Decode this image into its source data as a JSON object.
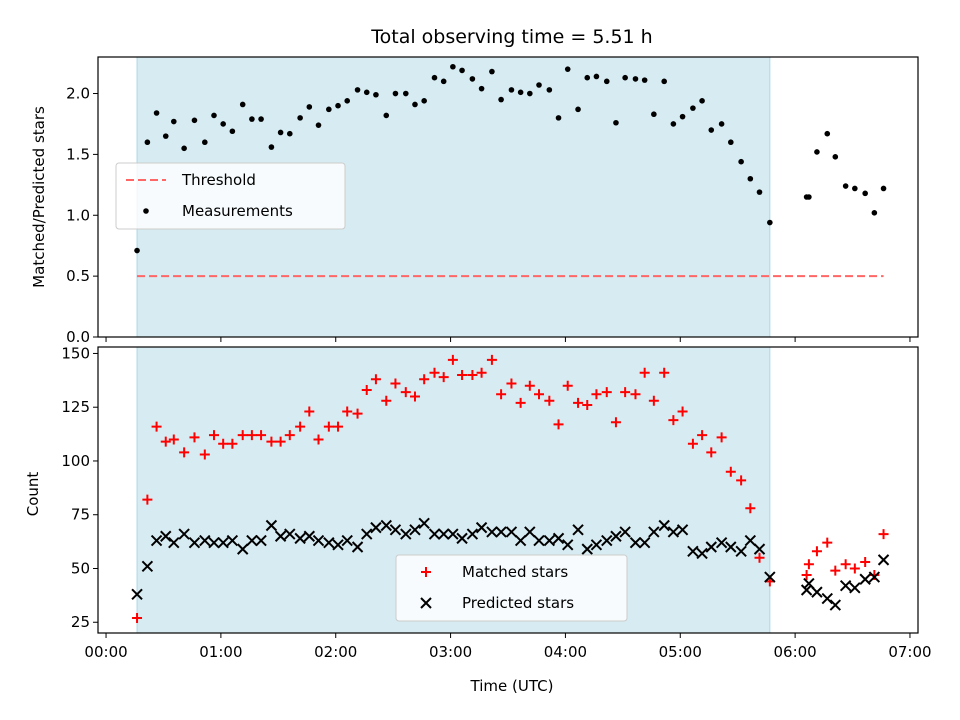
{
  "figure": {
    "title": "Total observing time = 5.51 h",
    "xlabel": "Time (UTC)"
  },
  "colors": {
    "shade": "#add8e6",
    "threshold": "#ff6666",
    "measurements": "#000000",
    "matched": "#ff0000",
    "predicted": "#000000"
  },
  "chart_data": [
    {
      "type": "scatter",
      "panel": "top",
      "ylabel": "Matched/Predicted stars",
      "xlim": [
        -0.07,
        7.07
      ],
      "ylim": [
        0,
        2.3
      ],
      "xticks": [
        0,
        1,
        2,
        3,
        4,
        5,
        6,
        7
      ],
      "xtick_labels": [],
      "yticks": [
        0.0,
        0.5,
        1.0,
        1.5,
        2.0
      ],
      "ytick_labels": [
        "0.0",
        "0.5",
        "1.0",
        "1.5",
        "2.0"
      ],
      "shaded_x_range": [
        0.27,
        5.78
      ],
      "legend": {
        "placement": "center-left",
        "entries": [
          "Threshold",
          "Measurements"
        ]
      },
      "threshold": {
        "name": "Threshold",
        "y": 0.5,
        "x_range": [
          0.27,
          6.77
        ]
      },
      "series": [
        {
          "name": "Measurements",
          "marker": "dot",
          "x": [
            0.27,
            0.36,
            0.44,
            0.52,
            0.59,
            0.68,
            0.77,
            0.86,
            0.94,
            1.02,
            1.1,
            1.19,
            1.27,
            1.35,
            1.44,
            1.52,
            1.6,
            1.69,
            1.77,
            1.85,
            1.94,
            2.02,
            2.1,
            2.19,
            2.27,
            2.35,
            2.44,
            2.52,
            2.61,
            2.69,
            2.77,
            2.86,
            2.94,
            3.02,
            3.1,
            3.19,
            3.27,
            3.36,
            3.44,
            3.53,
            3.61,
            3.69,
            3.77,
            3.86,
            3.94,
            4.02,
            4.11,
            4.19,
            4.27,
            4.36,
            4.44,
            4.52,
            4.61,
            4.69,
            4.77,
            4.86,
            4.94,
            5.02,
            5.11,
            5.19,
            5.27,
            5.36,
            5.44,
            5.53,
            5.61,
            5.69,
            5.78,
            6.1,
            6.12,
            6.19,
            6.28,
            6.35,
            6.44,
            6.52,
            6.61,
            6.69,
            6.77
          ],
          "y": [
            0.71,
            1.6,
            1.84,
            1.65,
            1.77,
            1.55,
            1.78,
            1.6,
            1.82,
            1.75,
            1.69,
            1.91,
            1.79,
            1.79,
            1.56,
            1.68,
            1.67,
            1.8,
            1.89,
            1.74,
            1.87,
            1.9,
            1.94,
            2.03,
            2.01,
            1.99,
            1.82,
            2.0,
            2.0,
            1.91,
            1.94,
            2.13,
            2.1,
            2.22,
            2.19,
            2.12,
            2.04,
            2.18,
            1.95,
            2.03,
            2.01,
            2.0,
            2.07,
            2.03,
            1.8,
            2.2,
            1.87,
            2.13,
            2.14,
            2.1,
            1.76,
            2.13,
            2.12,
            2.11,
            1.83,
            2.1,
            1.75,
            1.81,
            1.88,
            1.94,
            1.7,
            1.75,
            1.6,
            1.44,
            1.3,
            1.19,
            0.94,
            1.15,
            1.15,
            1.52,
            1.67,
            1.48,
            1.24,
            1.22,
            1.18,
            1.02,
            1.22
          ]
        }
      ]
    },
    {
      "type": "scatter",
      "panel": "bottom",
      "ylabel": "Count",
      "xlabel": "Time (UTC)",
      "xlim": [
        -0.07,
        7.07
      ],
      "ylim": [
        20,
        153
      ],
      "xticks": [
        0,
        1,
        2,
        3,
        4,
        5,
        6,
        7
      ],
      "xtick_labels": [
        "00:00",
        "01:00",
        "02:00",
        "03:00",
        "04:00",
        "05:00",
        "06:00",
        "07:00"
      ],
      "yticks": [
        25,
        50,
        75,
        100,
        125,
        150
      ],
      "ytick_labels": [
        "25",
        "50",
        "75",
        "100",
        "125",
        "150"
      ],
      "shaded_x_range": [
        0.27,
        5.78
      ],
      "legend": {
        "placement": "lower-center",
        "entries": [
          "Matched stars",
          "Predicted stars"
        ]
      },
      "series": [
        {
          "name": "Matched stars",
          "marker": "plus",
          "x": [
            0.27,
            0.36,
            0.44,
            0.52,
            0.59,
            0.68,
            0.77,
            0.86,
            0.94,
            1.02,
            1.1,
            1.19,
            1.27,
            1.35,
            1.44,
            1.52,
            1.6,
            1.69,
            1.77,
            1.85,
            1.94,
            2.02,
            2.1,
            2.19,
            2.27,
            2.35,
            2.44,
            2.52,
            2.61,
            2.69,
            2.77,
            2.86,
            2.94,
            3.02,
            3.1,
            3.19,
            3.27,
            3.36,
            3.44,
            3.53,
            3.61,
            3.69,
            3.77,
            3.86,
            3.94,
            4.02,
            4.11,
            4.19,
            4.27,
            4.36,
            4.44,
            4.52,
            4.61,
            4.69,
            4.77,
            4.86,
            4.94,
            5.02,
            5.11,
            5.19,
            5.27,
            5.36,
            5.44,
            5.53,
            5.61,
            5.69,
            5.78,
            6.1,
            6.12,
            6.19,
            6.28,
            6.35,
            6.44,
            6.52,
            6.61,
            6.69,
            6.77
          ],
          "y": [
            27,
            82,
            116,
            109,
            110,
            104,
            111,
            103,
            112,
            108,
            108,
            112,
            112,
            112,
            109,
            109,
            112,
            116,
            123,
            110,
            116,
            116,
            123,
            122,
            133,
            138,
            128,
            136,
            132,
            130,
            138,
            141,
            139,
            147,
            140,
            140,
            141,
            147,
            131,
            136,
            127,
            135,
            131,
            128,
            117,
            135,
            127,
            126,
            131,
            132,
            118,
            132,
            131,
            141,
            128,
            141,
            119,
            123,
            108,
            112,
            104,
            111,
            95,
            91,
            78,
            55,
            44,
            47,
            52,
            58,
            62,
            49,
            52,
            50,
            53,
            47,
            66
          ]
        },
        {
          "name": "Predicted stars",
          "marker": "x",
          "x": [
            0.27,
            0.36,
            0.44,
            0.52,
            0.59,
            0.68,
            0.77,
            0.86,
            0.94,
            1.02,
            1.1,
            1.19,
            1.27,
            1.35,
            1.44,
            1.52,
            1.6,
            1.69,
            1.77,
            1.85,
            1.94,
            2.02,
            2.1,
            2.19,
            2.27,
            2.35,
            2.44,
            2.52,
            2.61,
            2.69,
            2.77,
            2.86,
            2.94,
            3.02,
            3.1,
            3.19,
            3.27,
            3.36,
            3.44,
            3.53,
            3.61,
            3.69,
            3.77,
            3.86,
            3.94,
            4.02,
            4.11,
            4.19,
            4.27,
            4.36,
            4.44,
            4.52,
            4.61,
            4.69,
            4.77,
            4.86,
            4.94,
            5.02,
            5.11,
            5.19,
            5.27,
            5.36,
            5.44,
            5.53,
            5.61,
            5.69,
            5.78,
            6.1,
            6.12,
            6.19,
            6.28,
            6.35,
            6.44,
            6.52,
            6.61,
            6.69,
            6.77
          ],
          "y": [
            38,
            51,
            63,
            65,
            62,
            66,
            62,
            63,
            62,
            62,
            63,
            59,
            63,
            63,
            70,
            65,
            66,
            64,
            65,
            63,
            62,
            61,
            63,
            60,
            66,
            69,
            70,
            68,
            66,
            68,
            71,
            66,
            66,
            66,
            64,
            66,
            69,
            67,
            67,
            67,
            63,
            67,
            63,
            63,
            64,
            61,
            68,
            59,
            61,
            63,
            65,
            67,
            62,
            62,
            67,
            70,
            67,
            68,
            58,
            57,
            60,
            62,
            60,
            58,
            63,
            59,
            46,
            40,
            43,
            39,
            36,
            33,
            42,
            41,
            45,
            46,
            54
          ]
        }
      ]
    }
  ]
}
